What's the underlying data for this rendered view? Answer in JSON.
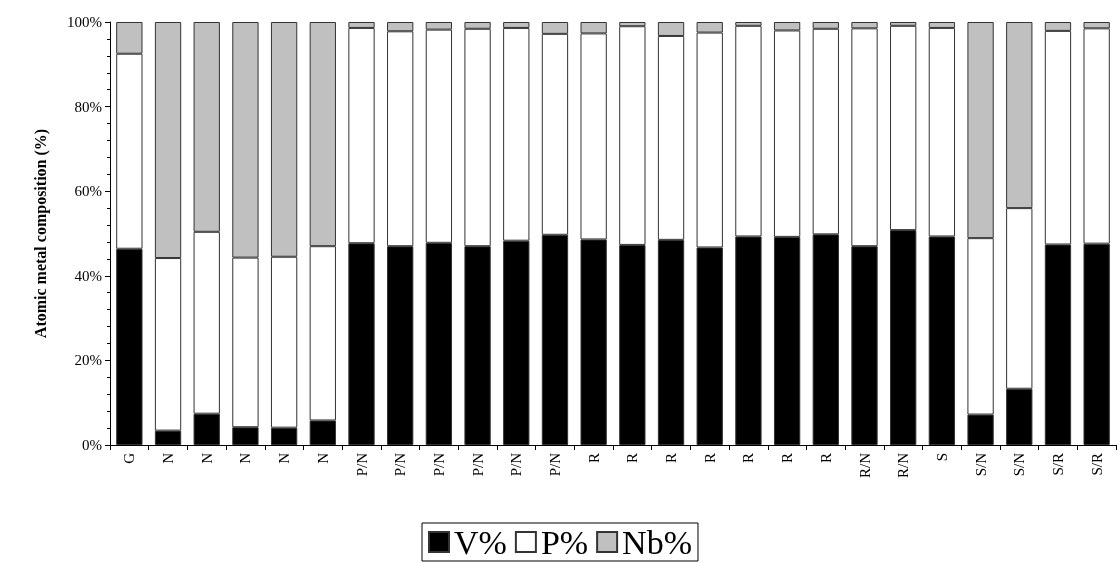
{
  "chart_data": {
    "type": "bar",
    "stacked": true,
    "ylabel": "Atomic metal composition (%)",
    "categories": [
      "G",
      "N",
      "N",
      "N",
      "N",
      "N",
      "P/N",
      "P/N",
      "P/N",
      "P/N",
      "P/N",
      "P/N",
      "R",
      "R",
      "R",
      "R",
      "R",
      "R",
      "R",
      "R/N",
      "R/N",
      "S",
      "S/N",
      "S/N",
      "S/R",
      "S/R"
    ],
    "series": [
      {
        "name": "V%",
        "color": "#000000",
        "values": [
          46.4,
          3.4,
          7.4,
          4.2,
          4.1,
          5.8,
          47.7,
          47.0,
          47.8,
          47.0,
          48.3,
          49.7,
          48.6,
          47.3,
          48.5,
          46.7,
          49.3,
          49.2,
          49.8,
          47.0,
          50.8,
          49.3,
          7.2,
          13.3,
          47.4,
          47.6
        ]
      },
      {
        "name": "P%",
        "color": "#ffffff",
        "values": [
          46.1,
          40.8,
          43.0,
          40.1,
          40.4,
          41.2,
          50.9,
          50.8,
          50.4,
          51.4,
          50.3,
          47.5,
          48.7,
          51.7,
          48.2,
          50.8,
          49.8,
          48.8,
          48.6,
          51.5,
          48.3,
          49.3,
          41.7,
          42.7,
          50.5,
          50.9
        ]
      },
      {
        "name": "Nb%",
        "color": "#c0c0c0",
        "values": [
          7.5,
          55.8,
          49.6,
          55.7,
          55.5,
          53.0,
          1.4,
          2.2,
          1.8,
          1.6,
          1.4,
          2.8,
          2.7,
          1.0,
          3.3,
          2.5,
          0.9,
          2.0,
          1.6,
          1.5,
          0.9,
          1.4,
          51.1,
          44.0,
          2.1,
          1.5
        ]
      }
    ],
    "ylim": [
      0,
      100
    ],
    "yticks": [
      {
        "value": 0,
        "label": "0%"
      },
      {
        "value": 20,
        "label": "20%"
      },
      {
        "value": 40,
        "label": "40%"
      },
      {
        "value": 60,
        "label": "60%"
      },
      {
        "value": 80,
        "label": "80%"
      },
      {
        "value": 100,
        "label": "100%"
      }
    ],
    "grid": false,
    "legend": "bottom"
  }
}
